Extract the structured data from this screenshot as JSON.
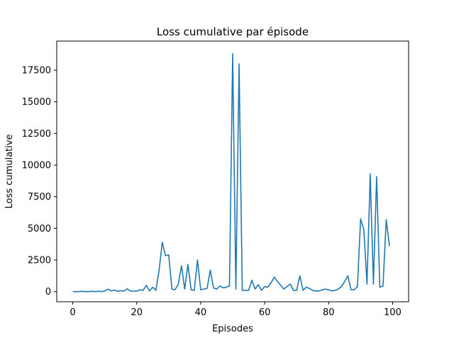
{
  "chart_data": {
    "type": "line",
    "title": "Loss cumulative par épisode",
    "xlabel": "Episodes",
    "ylabel": "Loss cumulative",
    "xlim": [
      -5,
      105
    ],
    "ylim": [
      -800,
      19800
    ],
    "x_ticks": [
      0,
      20,
      40,
      60,
      80,
      100
    ],
    "y_ticks": [
      0,
      2500,
      5000,
      7500,
      10000,
      12500,
      15000,
      17500
    ],
    "grid": false,
    "legend": "none",
    "line_color": "#1f77b4",
    "series": [
      {
        "x": [
          0,
          1,
          2,
          3,
          4,
          5,
          6,
          7,
          8,
          9,
          10,
          11,
          12,
          13,
          14,
          15,
          16,
          17,
          18,
          19,
          20,
          21,
          22,
          23,
          24,
          25,
          26,
          27,
          28,
          29,
          30,
          31,
          32,
          33,
          34,
          35,
          36,
          37,
          38,
          39,
          40,
          41,
          42,
          43,
          44,
          45,
          46,
          47,
          48,
          49,
          50,
          51,
          52,
          53,
          54,
          55,
          56,
          57,
          58,
          59,
          60,
          61,
          62,
          63,
          64,
          65,
          66,
          67,
          68,
          69,
          70,
          71,
          72,
          73,
          74,
          75,
          76,
          77,
          78,
          79,
          80,
          81,
          82,
          83,
          84,
          85,
          86,
          87,
          88,
          89,
          90,
          91,
          92,
          93,
          94,
          95,
          96,
          97,
          98,
          99
        ],
        "values": [
          0,
          0,
          0,
          30,
          0,
          0,
          30,
          0,
          30,
          0,
          50,
          200,
          60,
          120,
          30,
          80,
          40,
          220,
          50,
          40,
          30,
          150,
          100,
          500,
          60,
          350,
          100,
          1700,
          3900,
          2850,
          2900,
          200,
          150,
          600,
          2050,
          200,
          2150,
          150,
          100,
          2500,
          150,
          200,
          250,
          1700,
          300,
          200,
          450,
          300,
          350,
          450,
          18800,
          200,
          18000,
          100,
          100,
          100,
          900,
          200,
          550,
          100,
          400,
          350,
          700,
          1150,
          800,
          500,
          200,
          400,
          600,
          100,
          100,
          1250,
          100,
          350,
          250,
          100,
          50,
          50,
          150,
          200,
          150,
          50,
          100,
          200,
          400,
          800,
          1250,
          150,
          150,
          400,
          5750,
          4900,
          600,
          9300,
          600,
          9100,
          350,
          450,
          5700,
          3600
        ]
      }
    ]
  }
}
